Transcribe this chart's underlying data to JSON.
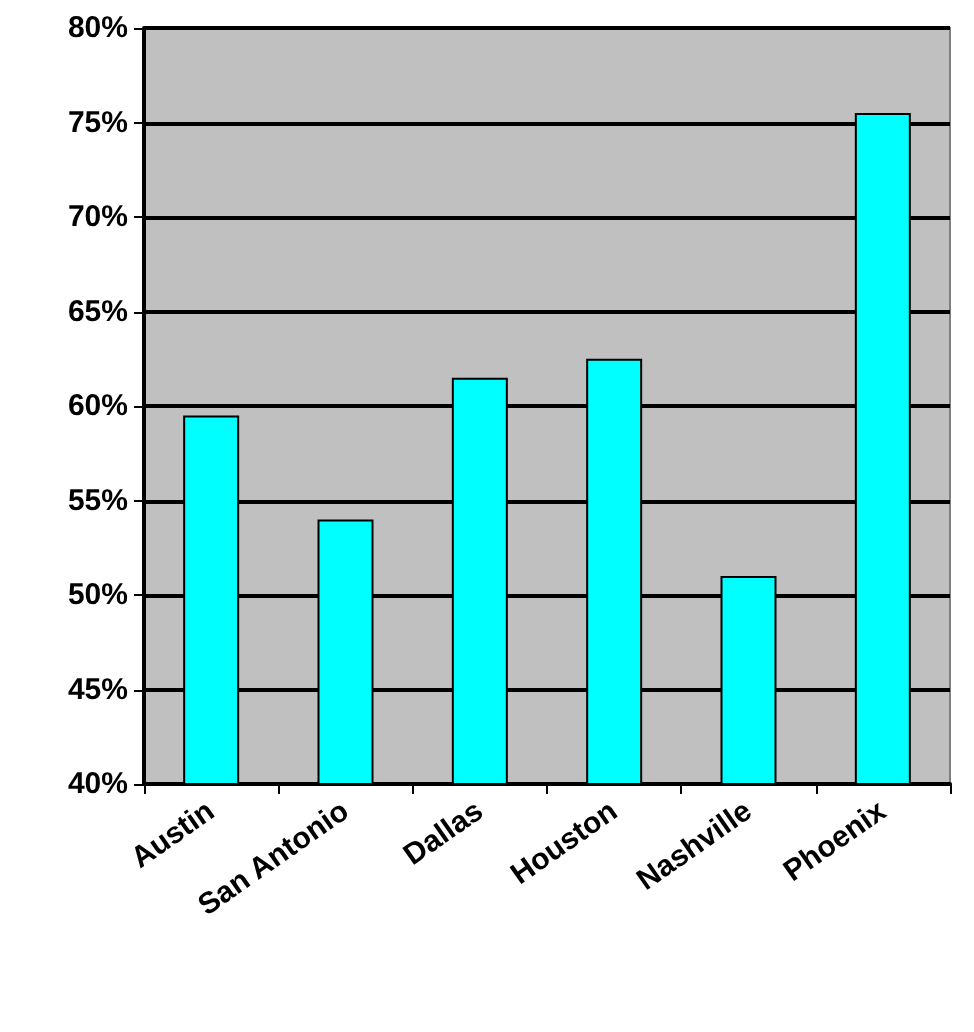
{
  "chart_data": {
    "type": "bar",
    "categories": [
      "Austin",
      "San Antonio",
      "Dallas",
      "Houston",
      "Nashville",
      "Phoenix"
    ],
    "values": [
      59.5,
      54,
      61.5,
      62.5,
      51,
      75.5
    ],
    "color": "#00ffff",
    "ylim": [
      40,
      80
    ],
    "yticks": [
      {
        "value": 40,
        "label": "40%"
      },
      {
        "value": 45,
        "label": "45%"
      },
      {
        "value": 50,
        "label": "50%"
      },
      {
        "value": 55,
        "label": "55%"
      },
      {
        "value": 60,
        "label": "60%"
      },
      {
        "value": 65,
        "label": "65%"
      },
      {
        "value": 70,
        "label": "70%"
      },
      {
        "value": 75,
        "label": "75%"
      },
      {
        "value": 80,
        "label": "80%"
      }
    ],
    "grid": "y"
  }
}
